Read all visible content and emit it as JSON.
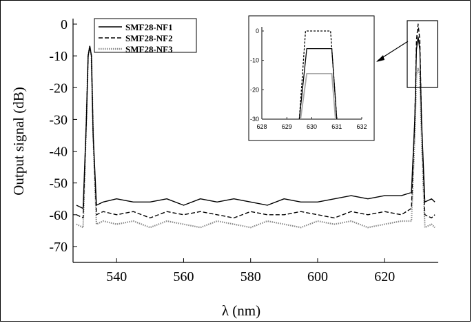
{
  "chart_data": {
    "type": "line",
    "xlabel": "λ (nm)",
    "ylabel": "Output signal (dB)",
    "xlim": [
      527,
      636
    ],
    "ylim": [
      -75,
      0
    ],
    "xticks": [
      540,
      560,
      580,
      600,
      620
    ],
    "yticks": [
      0,
      -10,
      -20,
      -30,
      -40,
      -50,
      -60,
      -70
    ],
    "legend_position": "top-left",
    "series": [
      {
        "name": "SMF28-NF1",
        "style": "solid",
        "color": "#000000",
        "x": [
          528,
          530,
          531,
          531.5,
          532,
          532.5,
          533,
          534,
          536,
          540,
          545,
          550,
          555,
          560,
          565,
          570,
          575,
          580,
          585,
          590,
          595,
          600,
          605,
          610,
          615,
          620,
          625,
          628,
          629,
          629.5,
          630,
          630.5,
          631,
          632,
          634,
          635
        ],
        "y": [
          -57,
          -58,
          -30,
          -10,
          -7,
          -10,
          -35,
          -57,
          -56,
          -55,
          -56,
          -56,
          -55,
          -57,
          -55,
          -56,
          -55,
          -56,
          -57,
          -55,
          -56,
          -56,
          -55,
          -54,
          -55,
          -54,
          -54,
          -53,
          -30,
          -8,
          -4,
          -8,
          -30,
          -56,
          -55,
          -56
        ]
      },
      {
        "name": "SMF28-NF2",
        "style": "dashed",
        "color": "#000000",
        "x": [
          528,
          530,
          531,
          531.5,
          532,
          532.5,
          533,
          534,
          536,
          540,
          545,
          550,
          555,
          560,
          565,
          570,
          575,
          580,
          585,
          590,
          595,
          600,
          605,
          610,
          615,
          620,
          625,
          628,
          629,
          629.5,
          630,
          630.5,
          631,
          632,
          634,
          635
        ],
        "y": [
          -60,
          -61,
          -30,
          -10,
          -7,
          -10,
          -35,
          -60,
          -59,
          -60,
          -59,
          -61,
          -59,
          -60,
          -59,
          -60,
          -61,
          -59,
          -60,
          -60,
          -59,
          -60,
          -61,
          -59,
          -60,
          -59,
          -60,
          -58,
          -30,
          -5,
          0,
          -5,
          -30,
          -60,
          -61,
          -60
        ]
      },
      {
        "name": "SMF28-NF3",
        "style": "dotted",
        "color": "#8a8a8a",
        "x": [
          528,
          530,
          531,
          531.5,
          532,
          532.5,
          533,
          534,
          536,
          540,
          545,
          550,
          555,
          560,
          565,
          570,
          575,
          580,
          585,
          590,
          595,
          600,
          605,
          610,
          615,
          620,
          625,
          628,
          629,
          629.5,
          630,
          630.5,
          631,
          632,
          634,
          635
        ],
        "y": [
          -63,
          -64,
          -30,
          -10,
          -7,
          -10,
          -35,
          -63,
          -62,
          -63,
          -62,
          -64,
          -62,
          -63,
          -64,
          -62,
          -63,
          -64,
          -62,
          -63,
          -64,
          -62,
          -63,
          -62,
          -64,
          -63,
          -62,
          -62,
          -35,
          -16,
          -14,
          -16,
          -35,
          -64,
          -63,
          -64
        ]
      }
    ],
    "inset": {
      "xlim": [
        628,
        632
      ],
      "ylim": [
        -30,
        0
      ],
      "xticks": [
        628,
        629,
        630,
        631,
        632
      ],
      "yticks": [
        0,
        -10,
        -20,
        -30
      ],
      "series": [
        {
          "name": "SMF28-NF1",
          "x": [
            629.5,
            629.8,
            630.8,
            631
          ],
          "y": [
            -30,
            -6,
            -6,
            -30
          ]
        },
        {
          "name": "SMF28-NF2",
          "x": [
            629.5,
            629.75,
            630.75,
            631
          ],
          "y": [
            -30,
            0,
            0,
            -30
          ]
        },
        {
          "name": "SMF28-NF3",
          "x": [
            629.55,
            629.8,
            630.8,
            630.95
          ],
          "y": [
            -30,
            -14.5,
            -14.5,
            -30
          ]
        }
      ]
    }
  }
}
